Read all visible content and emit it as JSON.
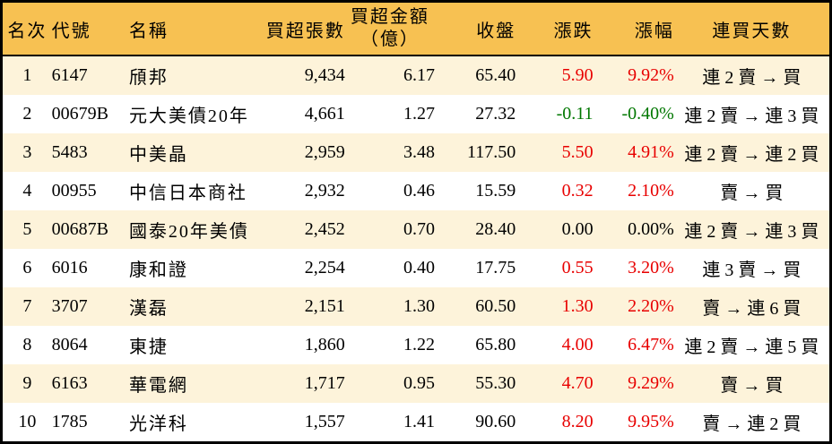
{
  "colors": {
    "header_bg": "#f7c152",
    "stripe_bg": "#fdf3da",
    "row_bg": "#ffffff",
    "border": "#000000",
    "up_text": "#e80000",
    "down_text": "#007700",
    "flat_text": "#000000"
  },
  "chart_data": {
    "type": "table",
    "columns": {
      "rank": "名次",
      "code": "代號",
      "name": "名稱",
      "volume": "買超張數",
      "amount_line1": "買超金額",
      "amount_line2": "（億）",
      "close": "收盤",
      "change": "漲跌",
      "change_pct": "漲幅",
      "streak": "連買天數"
    },
    "rows": [
      {
        "rank": "1",
        "code": "6147",
        "name": "頎邦",
        "volume": "9,434",
        "amount": "6.17",
        "close": "65.40",
        "change": "5.90",
        "change_pct": "9.92%",
        "streak": "連 2 賣 → 買",
        "trend": "up"
      },
      {
        "rank": "2",
        "code": "00679B",
        "name": "元大美債20年",
        "volume": "4,661",
        "amount": "1.27",
        "close": "27.32",
        "change": "-0.11",
        "change_pct": "-0.40%",
        "streak": "連 2 賣 → 連 3 買",
        "trend": "down"
      },
      {
        "rank": "3",
        "code": "5483",
        "name": "中美晶",
        "volume": "2,959",
        "amount": "3.48",
        "close": "117.50",
        "change": "5.50",
        "change_pct": "4.91%",
        "streak": "連 2 賣 → 連 2 買",
        "trend": "up"
      },
      {
        "rank": "4",
        "code": "00955",
        "name": "中信日本商社",
        "volume": "2,932",
        "amount": "0.46",
        "close": "15.59",
        "change": "0.32",
        "change_pct": "2.10%",
        "streak": "賣 → 買",
        "trend": "up"
      },
      {
        "rank": "5",
        "code": "00687B",
        "name": "國泰20年美債",
        "volume": "2,452",
        "amount": "0.70",
        "close": "28.40",
        "change": "0.00",
        "change_pct": "0.00%",
        "streak": "連 2 賣 → 連 3 買",
        "trend": "flat"
      },
      {
        "rank": "6",
        "code": "6016",
        "name": "康和證",
        "volume": "2,254",
        "amount": "0.40",
        "close": "17.75",
        "change": "0.55",
        "change_pct": "3.20%",
        "streak": "連 3 賣 → 買",
        "trend": "up"
      },
      {
        "rank": "7",
        "code": "3707",
        "name": "漢磊",
        "volume": "2,151",
        "amount": "1.30",
        "close": "60.50",
        "change": "1.30",
        "change_pct": "2.20%",
        "streak": "賣 → 連 6 買",
        "trend": "up"
      },
      {
        "rank": "8",
        "code": "8064",
        "name": "東捷",
        "volume": "1,860",
        "amount": "1.22",
        "close": "65.80",
        "change": "4.00",
        "change_pct": "6.47%",
        "streak": "連 2 賣 → 連 5 買",
        "trend": "up"
      },
      {
        "rank": "9",
        "code": "6163",
        "name": "華電網",
        "volume": "1,717",
        "amount": "0.95",
        "close": "55.30",
        "change": "4.70",
        "change_pct": "9.29%",
        "streak": "賣 → 買",
        "trend": "up"
      },
      {
        "rank": "10",
        "code": "1785",
        "name": "光洋科",
        "volume": "1,557",
        "amount": "1.41",
        "close": "90.60",
        "change": "8.20",
        "change_pct": "9.95%",
        "streak": "賣 → 連 2 買",
        "trend": "up"
      }
    ]
  }
}
